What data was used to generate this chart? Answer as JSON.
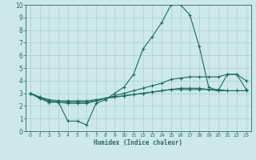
{
  "xlabel": "Humidex (Indice chaleur)",
  "bg_color": "#cce8e8",
  "line_color": "#1a6b5e",
  "grid_color": "#aacece",
  "axis_color": "#336666",
  "xlim": [
    -0.5,
    23.5
  ],
  "ylim": [
    0,
    10
  ],
  "xticks": [
    0,
    1,
    2,
    3,
    4,
    5,
    6,
    7,
    8,
    9,
    10,
    11,
    12,
    13,
    14,
    15,
    16,
    17,
    18,
    19,
    20,
    21,
    22,
    23
  ],
  "yticks": [
    0,
    1,
    2,
    3,
    4,
    5,
    6,
    7,
    8,
    9,
    10
  ],
  "series": [
    [
      3.0,
      2.6,
      2.3,
      2.3,
      0.8,
      0.8,
      0.5,
      2.2,
      2.5,
      3.0,
      3.5,
      4.5,
      6.5,
      7.5,
      8.6,
      10.0,
      10.0,
      9.2,
      6.7,
      3.5,
      3.2,
      4.5,
      4.5,
      4.0
    ],
    [
      3.0,
      2.6,
      2.3,
      2.3,
      2.2,
      2.2,
      2.2,
      2.4,
      2.6,
      2.8,
      3.0,
      3.2,
      3.4,
      3.6,
      3.8,
      4.1,
      4.2,
      4.3,
      4.3,
      4.3,
      4.3,
      4.5,
      4.5,
      3.3
    ],
    [
      3.0,
      2.7,
      2.4,
      2.4,
      2.3,
      2.3,
      2.3,
      2.4,
      2.6,
      2.7,
      2.8,
      2.9,
      3.0,
      3.1,
      3.2,
      3.3,
      3.4,
      3.4,
      3.4,
      3.3,
      3.2,
      3.2,
      3.2,
      3.2
    ],
    [
      3.0,
      2.7,
      2.5,
      2.4,
      2.4,
      2.4,
      2.4,
      2.5,
      2.6,
      2.7,
      2.8,
      2.9,
      3.0,
      3.1,
      3.2,
      3.3,
      3.3,
      3.3,
      3.3,
      3.3,
      3.3,
      3.2,
      3.2,
      3.2
    ]
  ]
}
